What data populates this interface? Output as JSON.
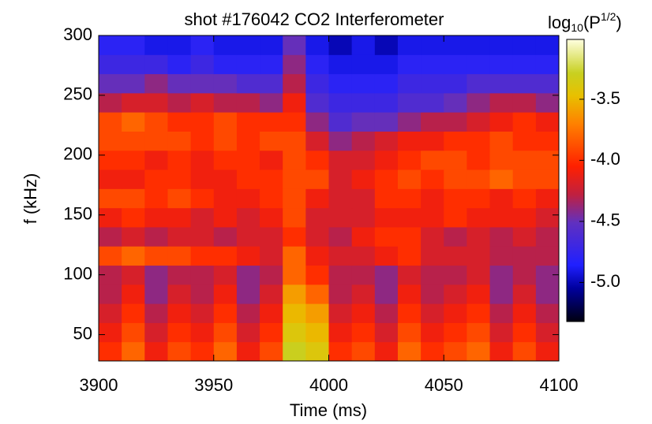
{
  "chart_data": {
    "type": "heatmap",
    "title": "shot #176042  CO2 Interferometer",
    "xlabel": "Time (ms)",
    "ylabel": "f (kHz)",
    "colorbar_label": {
      "base": "log",
      "sub": "10",
      "main": "(P",
      "sup": "1/2",
      "end": ")"
    },
    "xlim": [
      3900,
      4100
    ],
    "xticks": [
      3900,
      3950,
      4000,
      4050,
      4100
    ],
    "ylim": [
      28,
      300
    ],
    "yticks": [
      50,
      100,
      150,
      200,
      250,
      300
    ],
    "clim": [
      -5.32,
      -3.01
    ],
    "cticks": [
      -3.5,
      {
        "value": -4.0,
        "label": "-4.0"
      },
      -4.5,
      {
        "value": -5.0,
        "label": "-5.0"
      }
    ],
    "colorscale": [
      "#000010",
      "#0000a0",
      "#2020ff",
      "#6030c0",
      "#c02040",
      "#ff2000",
      "#ff8000",
      "#e8c000",
      "#c8d020",
      "#ffffe0"
    ],
    "colorscale_positions": [
      0,
      0.12,
      0.2,
      0.35,
      0.45,
      0.55,
      0.7,
      0.8,
      0.88,
      1
    ],
    "x_bins": [
      3900,
      3910,
      3920,
      3930,
      3940,
      3950,
      3960,
      3970,
      3980,
      3990,
      4000,
      4010,
      4020,
      4030,
      4040,
      4050,
      4060,
      4070,
      4080,
      4090,
      4100
    ],
    "y_bins": [
      28,
      44,
      60,
      76,
      92,
      108,
      124,
      140,
      156,
      172,
      188,
      204,
      220,
      236,
      252,
      268,
      284,
      300
    ],
    "z": [
      [
        -4.0,
        -3.8,
        -4.1,
        -3.9,
        -4.0,
        -3.8,
        -4.1,
        -3.9,
        -3.3,
        -3.4,
        -4.0,
        -3.9,
        -4.1,
        -3.8,
        -4.0,
        -3.9,
        -3.8,
        -4.1,
        -3.9,
        -4.1
      ],
      [
        -4.1,
        -3.9,
        -4.2,
        -4.0,
        -4.1,
        -3.9,
        -4.2,
        -4.0,
        -3.4,
        -3.5,
        -4.1,
        -4.0,
        -4.2,
        -3.9,
        -4.1,
        -4.0,
        -3.9,
        -4.2,
        -4.0,
        -4.2
      ],
      [
        -4.2,
        -4.0,
        -4.3,
        -4.1,
        -4.2,
        -4.0,
        -4.3,
        -4.1,
        -3.5,
        -3.6,
        -4.2,
        -4.1,
        -4.3,
        -4.0,
        -4.2,
        -4.1,
        -4.0,
        -4.3,
        -4.1,
        -4.3
      ],
      [
        -4.3,
        -4.1,
        -4.4,
        -4.2,
        -4.3,
        -4.1,
        -4.4,
        -4.2,
        -3.6,
        -3.8,
        -4.3,
        -4.2,
        -4.4,
        -4.1,
        -4.3,
        -4.2,
        -4.1,
        -4.4,
        -4.2,
        -4.4
      ],
      [
        -4.3,
        -4.2,
        -4.4,
        -4.3,
        -4.3,
        -4.2,
        -4.4,
        -4.3,
        -3.8,
        -4.0,
        -4.3,
        -4.3,
        -4.4,
        -4.2,
        -4.3,
        -4.3,
        -4.2,
        -4.4,
        -4.3,
        -4.4
      ],
      [
        -3.9,
        -3.8,
        -3.9,
        -3.9,
        -4.0,
        -4.0,
        -4.1,
        -4.2,
        -3.8,
        -4.1,
        -4.2,
        -4.2,
        -4.1,
        -4.0,
        -4.2,
        -4.2,
        -4.2,
        -4.3,
        -4.3,
        -4.3
      ],
      [
        -4.3,
        -4.2,
        -4.3,
        -4.2,
        -4.2,
        -4.3,
        -4.2,
        -4.2,
        -4.0,
        -4.2,
        -4.3,
        -4.1,
        -4.0,
        -4.0,
        -4.2,
        -4.3,
        -4.2,
        -4.3,
        -4.2,
        -4.3
      ],
      [
        -4.1,
        -4.0,
        -4.1,
        -4.1,
        -4.2,
        -4.1,
        -4.2,
        -4.1,
        -3.9,
        -4.2,
        -4.2,
        -4.2,
        -4.1,
        -4.1,
        -4.1,
        -4.0,
        -4.1,
        -4.1,
        -4.1,
        -4.2
      ],
      [
        -3.9,
        -3.9,
        -4.0,
        -3.9,
        -4.0,
        -4.1,
        -4.1,
        -4.0,
        -3.9,
        -4.1,
        -4.2,
        -4.2,
        -4.0,
        -4.0,
        -4.1,
        -4.0,
        -4.0,
        -4.1,
        -4.0,
        -4.1
      ],
      [
        -4.1,
        -4.1,
        -4.0,
        -4.0,
        -4.1,
        -4.1,
        -4.0,
        -4.0,
        -3.9,
        -3.9,
        -4.2,
        -4.1,
        -4.0,
        -3.9,
        -4.0,
        -3.9,
        -3.9,
        -3.8,
        -3.9,
        -3.9
      ],
      [
        -4.0,
        -4.0,
        -4.1,
        -4.0,
        -4.1,
        -4.0,
        -4.0,
        -4.1,
        -3.9,
        -4.0,
        -4.2,
        -4.2,
        -4.1,
        -4.0,
        -3.9,
        -3.9,
        -4.0,
        -3.9,
        -3.9,
        -3.9
      ],
      [
        -3.9,
        -3.9,
        -3.9,
        -3.9,
        -4.0,
        -3.9,
        -4.0,
        -3.9,
        -3.9,
        -4.2,
        -4.4,
        -4.3,
        -4.2,
        -4.1,
        -4.1,
        -4.0,
        -4.0,
        -3.9,
        -4.0,
        -4.0
      ],
      [
        -3.9,
        -3.8,
        -3.9,
        -4.0,
        -4.0,
        -3.9,
        -4.0,
        -4.0,
        -4.0,
        -4.4,
        -4.6,
        -4.5,
        -4.5,
        -4.4,
        -4.3,
        -4.3,
        -4.2,
        -4.1,
        -4.0,
        -4.1
      ],
      [
        -4.3,
        -4.2,
        -4.2,
        -4.3,
        -4.2,
        -4.3,
        -4.3,
        -4.4,
        -4.1,
        -4.6,
        -4.7,
        -4.7,
        -4.7,
        -4.6,
        -4.6,
        -4.5,
        -4.4,
        -4.3,
        -4.3,
        -4.4
      ],
      [
        -4.5,
        -4.5,
        -4.4,
        -4.5,
        -4.5,
        -4.5,
        -4.6,
        -4.6,
        -4.3,
        -4.7,
        -4.8,
        -4.8,
        -4.8,
        -4.7,
        -4.7,
        -4.7,
        -4.6,
        -4.6,
        -4.6,
        -4.6
      ],
      [
        -4.7,
        -4.7,
        -4.7,
        -4.8,
        -4.7,
        -4.8,
        -4.8,
        -4.8,
        -4.4,
        -4.8,
        -4.9,
        -4.9,
        -4.9,
        -4.8,
        -4.8,
        -4.8,
        -4.8,
        -4.8,
        -4.8,
        -4.8
      ],
      [
        -4.8,
        -4.8,
        -4.9,
        -4.9,
        -4.8,
        -4.9,
        -4.9,
        -4.9,
        -4.5,
        -4.9,
        -5.0,
        -4.9,
        -5.0,
        -4.9,
        -4.9,
        -4.9,
        -4.9,
        -4.9,
        -4.9,
        -4.9
      ]
    ]
  }
}
